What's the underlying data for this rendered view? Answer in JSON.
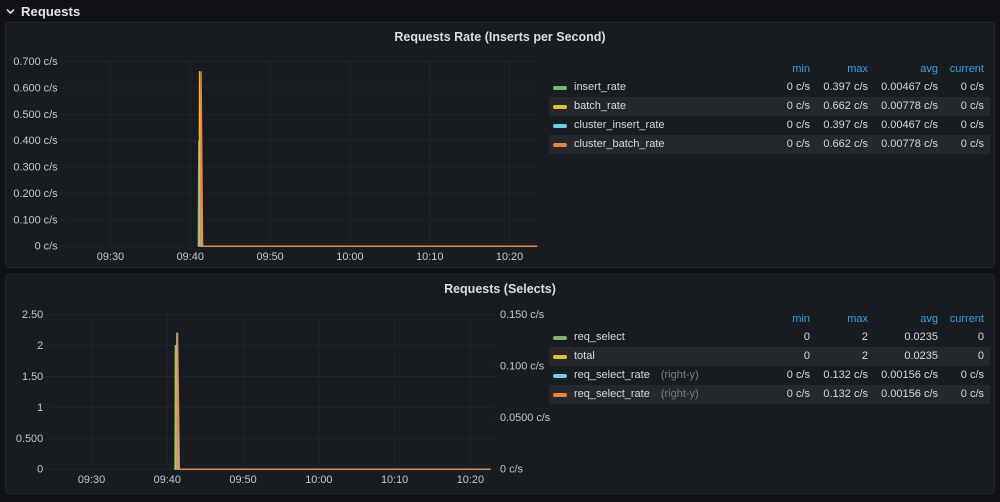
{
  "section": {
    "title": "Requests"
  },
  "palette": {
    "green": "#7EB26D",
    "yellow": "#EAB839",
    "cyan": "#6ED0E0",
    "orange": "#EF843C"
  },
  "legend_header_color": "#33A2E5",
  "panels": [
    {
      "title": "Requests Rate (Inserts per Second)",
      "legend": {
        "columns": [
          "min",
          "max",
          "avg",
          "current"
        ],
        "rows": [
          {
            "label": "insert_rate",
            "color": "green",
            "min": "0 c/s",
            "max": "0.397 c/s",
            "avg": "0.00467 c/s",
            "current": "0 c/s"
          },
          {
            "label": "batch_rate",
            "color": "yellow",
            "min": "0 c/s",
            "max": "0.662 c/s",
            "avg": "0.00778 c/s",
            "current": "0 c/s"
          },
          {
            "label": "cluster_insert_rate",
            "color": "cyan",
            "min": "0 c/s",
            "max": "0.397 c/s",
            "avg": "0.00467 c/s",
            "current": "0 c/s"
          },
          {
            "label": "cluster_batch_rate",
            "color": "orange",
            "min": "0 c/s",
            "max": "0.662 c/s",
            "avg": "0.00778 c/s",
            "current": "0 c/s"
          }
        ]
      },
      "chart_data": {
        "type": "line",
        "title": "Requests Rate (Inserts per Second)",
        "x_range": [
          24.5,
          83.4
        ],
        "x_ticks": [
          {
            "t": 30,
            "label": "09:30"
          },
          {
            "t": 40,
            "label": "09:40"
          },
          {
            "t": 50,
            "label": "09:50"
          },
          {
            "t": 60,
            "label": "10:00"
          },
          {
            "t": 70,
            "label": "10:10"
          },
          {
            "t": 80,
            "label": "10:20"
          }
        ],
        "y_left": {
          "max": 0.7,
          "ticks": [
            {
              "v": 0.7,
              "label": "0.700 c/s"
            },
            {
              "v": 0.6,
              "label": "0.600 c/s"
            },
            {
              "v": 0.5,
              "label": "0.500 c/s"
            },
            {
              "v": 0.4,
              "label": "0.400 c/s"
            },
            {
              "v": 0.3,
              "label": "0.300 c/s"
            },
            {
              "v": 0.2,
              "label": "0.200 c/s"
            },
            {
              "v": 0.1,
              "label": "0.100 c/s"
            },
            {
              "v": 0,
              "label": "0 c/s"
            }
          ]
        },
        "series": [
          {
            "name": "insert_rate",
            "color": "green",
            "axis": "left",
            "points": [
              [
                41.0,
                0
              ],
              [
                41.06,
                0.397
              ],
              [
                41.25,
                0
              ],
              [
                83.4,
                0
              ]
            ]
          },
          {
            "name": "batch_rate",
            "color": "yellow",
            "axis": "left",
            "points": [
              [
                41.1,
                0
              ],
              [
                41.16,
                0.662
              ],
              [
                41.35,
                0
              ],
              [
                83.4,
                0
              ]
            ]
          },
          {
            "name": "cluster_insert_rate",
            "color": "cyan",
            "axis": "left",
            "points": [
              [
                41.2,
                0
              ],
              [
                41.26,
                0.397
              ],
              [
                41.45,
                0
              ],
              [
                83.4,
                0
              ]
            ]
          },
          {
            "name": "cluster_batch_rate",
            "color": "orange",
            "axis": "left",
            "points": [
              [
                41.3,
                0
              ],
              [
                41.36,
                0.662
              ],
              [
                41.55,
                0
              ],
              [
                83.4,
                0
              ]
            ]
          }
        ]
      }
    },
    {
      "title": "Requests (Selects)",
      "legend": {
        "columns": [
          "min",
          "max",
          "avg",
          "current"
        ],
        "rows": [
          {
            "label": "req_select",
            "color": "green",
            "min": "0",
            "max": "2",
            "avg": "0.0235",
            "current": "0"
          },
          {
            "label": "total",
            "color": "yellow",
            "min": "0",
            "max": "2",
            "avg": "0.0235",
            "current": "0"
          },
          {
            "label": "req_select_rate",
            "suffix": "(right-y)",
            "color": "cyan",
            "min": "0 c/s",
            "max": "0.132 c/s",
            "avg": "0.00156 c/s",
            "current": "0 c/s"
          },
          {
            "label": "req_select_rate",
            "suffix": "(right-y)",
            "color": "orange",
            "min": "0 c/s",
            "max": "0.132 c/s",
            "avg": "0.00156 c/s",
            "current": "0 c/s"
          }
        ]
      },
      "chart_data": {
        "type": "line",
        "title": "Requests (Selects)",
        "x_range": [
          24.8,
          82.6
        ],
        "x_ticks": [
          {
            "t": 30,
            "label": "09:30"
          },
          {
            "t": 40,
            "label": "09:40"
          },
          {
            "t": 50,
            "label": "09:50"
          },
          {
            "t": 60,
            "label": "10:00"
          },
          {
            "t": 70,
            "label": "10:10"
          },
          {
            "t": 80,
            "label": "10:20"
          }
        ],
        "y_left": {
          "max": 2.5,
          "ticks": [
            {
              "v": 2.5,
              "label": "2.50"
            },
            {
              "v": 2,
              "label": "2"
            },
            {
              "v": 1.5,
              "label": "1.50"
            },
            {
              "v": 1,
              "label": "1"
            },
            {
              "v": 0.5,
              "label": "0.500"
            },
            {
              "v": 0,
              "label": "0"
            }
          ]
        },
        "y_right": {
          "max": 0.15,
          "ticks": [
            {
              "v": 0.15,
              "label": "0.150 c/s"
            },
            {
              "v": 0.1,
              "label": "0.100 c/s"
            },
            {
              "v": 0.05,
              "label": "0.0500 c/s"
            },
            {
              "v": 0,
              "label": "0 c/s"
            }
          ]
        },
        "series": [
          {
            "name": "req_select",
            "color": "green",
            "axis": "left",
            "points": [
              [
                41.0,
                0
              ],
              [
                41.06,
                2
              ],
              [
                41.3,
                0
              ],
              [
                82.6,
                0
              ]
            ]
          },
          {
            "name": "total",
            "color": "yellow",
            "axis": "left",
            "points": [
              [
                41.1,
                0
              ],
              [
                41.16,
                2
              ],
              [
                41.4,
                0
              ],
              [
                82.6,
                0
              ]
            ]
          },
          {
            "name": "req_select_rate",
            "color": "cyan",
            "axis": "right",
            "points": [
              [
                41.2,
                0
              ],
              [
                41.26,
                0.132
              ],
              [
                41.5,
                0
              ],
              [
                82.6,
                0
              ]
            ]
          },
          {
            "name": "req_select_rate",
            "color": "orange",
            "axis": "right",
            "points": [
              [
                41.3,
                0
              ],
              [
                41.36,
                0.132
              ],
              [
                41.6,
                0
              ],
              [
                82.6,
                0
              ]
            ]
          }
        ]
      }
    }
  ]
}
